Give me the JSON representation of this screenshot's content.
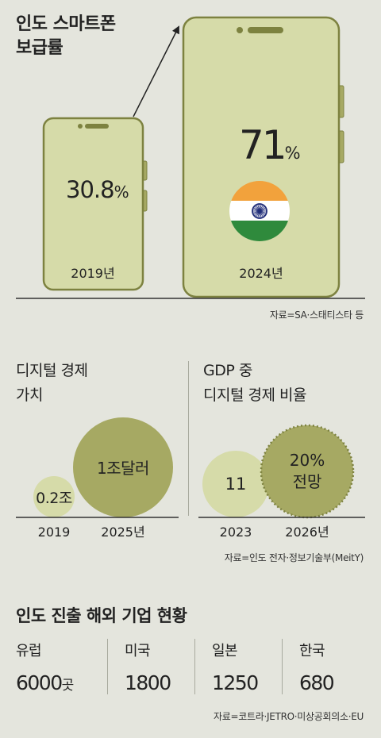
{
  "section1": {
    "title_line1": "인도 스마트폰",
    "title_line2": "보급률",
    "source": "자료=SA·스태티스타 등"
  },
  "section2": {
    "left_title_line1": "디지털 경제",
    "left_title_line2": "가치",
    "right_title_line1": "GDP 중",
    "right_title_line2": "디지털 경제 비율",
    "source": "자료=인도 전자·정보기술부(MeitY)"
  },
  "section3": {
    "title": "인도 진출 해외 기업 현황",
    "source": "자료=코트라·JETRO·미상공회의소·EU",
    "unit": "곳",
    "countries": [
      {
        "name": "유럽",
        "count": "6000"
      },
      {
        "name": "미국",
        "count": "1800"
      },
      {
        "name": "일본",
        "count": "1250"
      },
      {
        "name": "한국",
        "count": "680"
      }
    ]
  },
  "colors": {
    "background": "#e4e5dd",
    "phone_fill": "#d6dba9",
    "phone_stroke": "#7d8240",
    "circle_light": "#d6dba9",
    "circle_dark": "#a6a963",
    "flag_saffron": "#f2a23c",
    "flag_green": "#2f8a3c",
    "flag_chakra": "#1f2c78"
  },
  "chart_data": [
    {
      "type": "bar",
      "title": "인도 스마트폰 보급률",
      "categories": [
        "2019년",
        "2024년"
      ],
      "values": [
        30.8,
        71
      ],
      "value_labels": [
        "30.8",
        "71"
      ],
      "unit": "%"
    },
    {
      "type": "bubble",
      "title": "디지털 경제 가치",
      "categories": [
        "2019",
        "2025년"
      ],
      "value_labels": [
        "0.2조",
        "1조달러"
      ],
      "values": [
        0.2,
        1.0
      ]
    },
    {
      "type": "bubble",
      "title": "GDP 중 디지털 경제 비율",
      "categories": [
        "2023",
        "2026년"
      ],
      "value_labels": [
        "11",
        "20% 전망"
      ],
      "value_label_lines": [
        [
          "11"
        ],
        [
          "20%",
          "전망"
        ]
      ],
      "values": [
        11,
        20
      ],
      "projected": [
        false,
        true
      ]
    },
    {
      "type": "table",
      "title": "인도 진출 해외 기업 현황",
      "categories": [
        "유럽",
        "미국",
        "일본",
        "한국"
      ],
      "values": [
        6000,
        1800,
        1250,
        680
      ],
      "unit": "곳"
    }
  ]
}
